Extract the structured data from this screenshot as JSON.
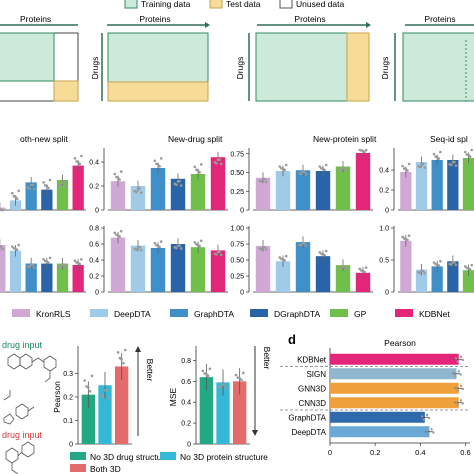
{
  "legend_top": [
    {
      "label": "Training data",
      "color": "#cde9da",
      "stroke": "#2f8a63"
    },
    {
      "label": "Test data",
      "color": "#f6dc96",
      "stroke": "#c9a24a"
    },
    {
      "label": "Unused data",
      "color": "#ffffff",
      "stroke": "#555555"
    }
  ],
  "split_panels": [
    {
      "top_label": "Proteins",
      "side_label": ""
    },
    {
      "top_label": "Proteins",
      "side_label": "Drugs"
    },
    {
      "top_label": "Proteins",
      "side_label": "Drugs"
    },
    {
      "top_label": "Proteins",
      "side_label": "Drugs"
    }
  ],
  "colors": {
    "KronRLS": "#cfa9d4",
    "DeepDTA": "#9fcbe8",
    "GraphDTA": "#3f8fc8",
    "DGraphDTA": "#2a64a8",
    "GP": "#6fbf4a",
    "KDBNet": "#e4267a",
    "No3D": "#23a884",
    "No3DProt": "#34b8d8",
    "Both3D": "#e46b6b",
    "SIGN": "#8fb7cf",
    "GNN3D": "#f0a03a",
    "CNN3D": "#f0a03a",
    "GraphDTA_d": "#2f6aac",
    "DeepDTA_d": "#6aa8d8"
  },
  "method_legend": [
    "KronRLS",
    "DeepDTA",
    "GraphDTA",
    "DGraphDTA",
    "GP",
    "KDBNet"
  ],
  "panel_c_texts": {
    "label1": "drug input",
    "label2": "drug input",
    "ylabel_left": "Pearson",
    "ylabel_right": "MSE",
    "better1": "Better",
    "better2": "Better"
  },
  "panel_c_legend": [
    "No 3D drug structure",
    "No 3D protein structure",
    "Both 3D"
  ],
  "panel_d_letter": "d",
  "chart_data": [
    {
      "type": "bar",
      "title": "oth-new split",
      "categories": [
        "KronRLS",
        "DeepDTA",
        "GraphDTA",
        "DGraphDTA",
        "GP",
        "KDBNet"
      ],
      "values": [
        0.02,
        0.08,
        0.23,
        0.17,
        0.25,
        0.37
      ],
      "ylim": [
        0,
        0.5
      ],
      "yticks": []
    },
    {
      "type": "bar",
      "title": "New-drug split",
      "categories": [
        "KronRLS",
        "DeepDTA",
        "GraphDTA",
        "DGraphDTA",
        "GP",
        "KDBNet"
      ],
      "values": [
        0.24,
        0.2,
        0.35,
        0.26,
        0.3,
        0.44
      ],
      "ylim": [
        0,
        0.5
      ],
      "yticks": [
        "0",
        "0.2",
        "0.4"
      ]
    },
    {
      "type": "bar",
      "title": "New-protein split",
      "categories": [
        "KronRLS",
        "DeepDTA",
        "GraphDTA",
        "DGraphDTA",
        "GP",
        "KDBNet"
      ],
      "values": [
        0.43,
        0.52,
        0.53,
        0.52,
        0.58,
        0.76
      ],
      "ylim": [
        0,
        0.8
      ],
      "yticks": [
        "0",
        "0.25",
        "0.50",
        "0.75"
      ]
    },
    {
      "type": "bar",
      "title": "Seq-id spl",
      "categories": [
        "KronRLS",
        "DeepDTA",
        "GraphDTA",
        "DGraphDTA",
        "GP",
        "KDBNet"
      ],
      "values": [
        0.38,
        0.48,
        0.5,
        0.5,
        0.52,
        0.55
      ],
      "ylim": [
        0,
        0.6
      ],
      "yticks": [
        "0",
        "0.2",
        "0.4"
      ]
    },
    {
      "type": "bar",
      "title": "",
      "categories": [
        "KronRLS",
        "DeepDTA",
        "GraphDTA",
        "DGraphDTA",
        "GP",
        "KDBNet"
      ],
      "values": [
        0.66,
        0.58,
        0.4,
        0.4,
        0.4,
        0.38
      ],
      "ylim": [
        0,
        0.9
      ],
      "yticks": []
    },
    {
      "type": "bar",
      "title": "",
      "categories": [
        "KronRLS",
        "DeepDTA",
        "GraphDTA",
        "DGraphDTA",
        "GP",
        "KDBNet"
      ],
      "values": [
        0.68,
        0.58,
        0.55,
        0.6,
        0.56,
        0.52
      ],
      "ylim": [
        0,
        0.8
      ],
      "yticks": [
        "0",
        "0.2",
        "0.4",
        "0.6",
        "0.8"
      ]
    },
    {
      "type": "bar",
      "title": "",
      "categories": [
        "KronRLS",
        "DeepDTA",
        "GraphDTA",
        "DGraphDTA",
        "GP",
        "KDBNet"
      ],
      "values": [
        0.72,
        0.48,
        0.78,
        0.56,
        0.42,
        0.3
      ],
      "ylim": [
        0,
        1.0
      ],
      "yticks": [
        "0",
        "0.25",
        "0.50",
        "0.75",
        "1.00"
      ]
    },
    {
      "type": "bar",
      "title": "",
      "categories": [
        "KronRLS",
        "DeepDTA",
        "GraphDTA",
        "DGraphDTA",
        "GP",
        "KDBNet"
      ],
      "values": [
        0.8,
        0.35,
        0.4,
        0.48,
        0.34,
        0.38
      ],
      "ylim": [
        0,
        1.0
      ],
      "yticks": [
        "0",
        "0.5",
        "1.0"
      ]
    },
    {
      "type": "bar",
      "title": "",
      "categories": [
        "No 3D drug structure",
        "No 3D protein structure",
        "Both 3D"
      ],
      "values": [
        0.21,
        0.25,
        0.33
      ],
      "ylim": [
        0,
        0.4
      ],
      "yticks": [
        "0",
        "0.1",
        "0.2",
        "0.3"
      ]
    },
    {
      "type": "bar",
      "title": "",
      "categories": [
        "No 3D drug structure",
        "No 3D protein structure",
        "Both 3D"
      ],
      "values": [
        0.64,
        0.59,
        0.6
      ],
      "ylim": [
        0,
        0.9
      ],
      "yticks": [
        "0",
        "0.2",
        "0.4",
        "0.6",
        "0.8"
      ]
    },
    {
      "type": "bar",
      "orientation": "horizontal",
      "title": "Pearson",
      "categories": [
        "KDBNet",
        "SIGN",
        "GNN3D",
        "CNN3D",
        "GraphDTA",
        "DeepDTA"
      ],
      "values": [
        0.57,
        0.56,
        0.57,
        0.57,
        0.42,
        0.44
      ],
      "xlim": [
        0,
        0.62
      ],
      "xticks": [
        "0",
        "0.2",
        "0.4",
        "0.6"
      ]
    }
  ]
}
